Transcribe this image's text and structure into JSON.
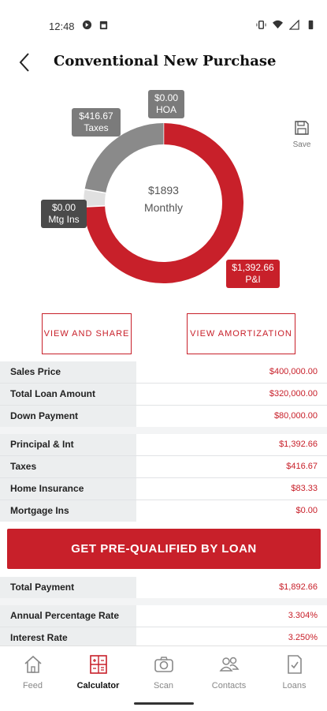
{
  "status": {
    "time": "12:48"
  },
  "header": {
    "title": "Conventional New Purchase"
  },
  "save": {
    "label": "Save"
  },
  "chart_data": {
    "type": "pie",
    "center": {
      "amount": "$1893",
      "period": "Monthly"
    },
    "slices": [
      {
        "name": "P&I",
        "value": 1392.66,
        "label": "$1,392.66",
        "color": "#c8202a"
      },
      {
        "name": "Mtg Ins",
        "value": 0,
        "label": "$0.00",
        "color": "#e0e0e0"
      },
      {
        "name": "Taxes",
        "value": 416.67,
        "label": "$416.67",
        "color": "#8a8a8a"
      },
      {
        "name": "HOA",
        "value": 0,
        "label": "$0.00",
        "color": "#8a8a8a"
      }
    ]
  },
  "callouts": {
    "hoa": {
      "amount": "$0.00",
      "name": "HOA"
    },
    "taxes": {
      "amount": "$416.67",
      "name": "Taxes"
    },
    "mtg": {
      "amount": "$0.00",
      "name": "Mtg Ins"
    },
    "pi": {
      "amount": "$1,392.66",
      "name": "P&I"
    }
  },
  "buttons": {
    "view_share": "VIEW AND SHARE",
    "view_amortization": "VIEW AMORTIZATION",
    "cta": "GET PRE-QUALIFIED BY LOAN"
  },
  "group1": [
    {
      "label": "Sales Price",
      "value": "$400,000.00"
    },
    {
      "label": "Total Loan Amount",
      "value": "$320,000.00"
    },
    {
      "label": "Down Payment",
      "value": "$80,000.00"
    }
  ],
  "group2": [
    {
      "label": "Principal & Int",
      "value": "$1,392.66"
    },
    {
      "label": "Taxes",
      "value": "$416.67"
    },
    {
      "label": "Home Insurance",
      "value": "$83.33"
    },
    {
      "label": "Mortgage Ins",
      "value": "$0.00"
    }
  ],
  "group3": [
    {
      "label": "Total Payment",
      "value": "$1,892.66"
    }
  ],
  "group4": [
    {
      "label": "Annual Percentage Rate",
      "value": "3.304%"
    },
    {
      "label": "Interest Rate",
      "value": "3.250%"
    }
  ],
  "tabs": [
    {
      "label": "Feed",
      "icon": "home-icon"
    },
    {
      "label": "Calculator",
      "icon": "calculator-icon"
    },
    {
      "label": "Scan",
      "icon": "camera-icon"
    },
    {
      "label": "Contacts",
      "icon": "contacts-icon"
    },
    {
      "label": "Loans",
      "icon": "document-check-icon"
    }
  ],
  "accent_color": "#c8202a"
}
